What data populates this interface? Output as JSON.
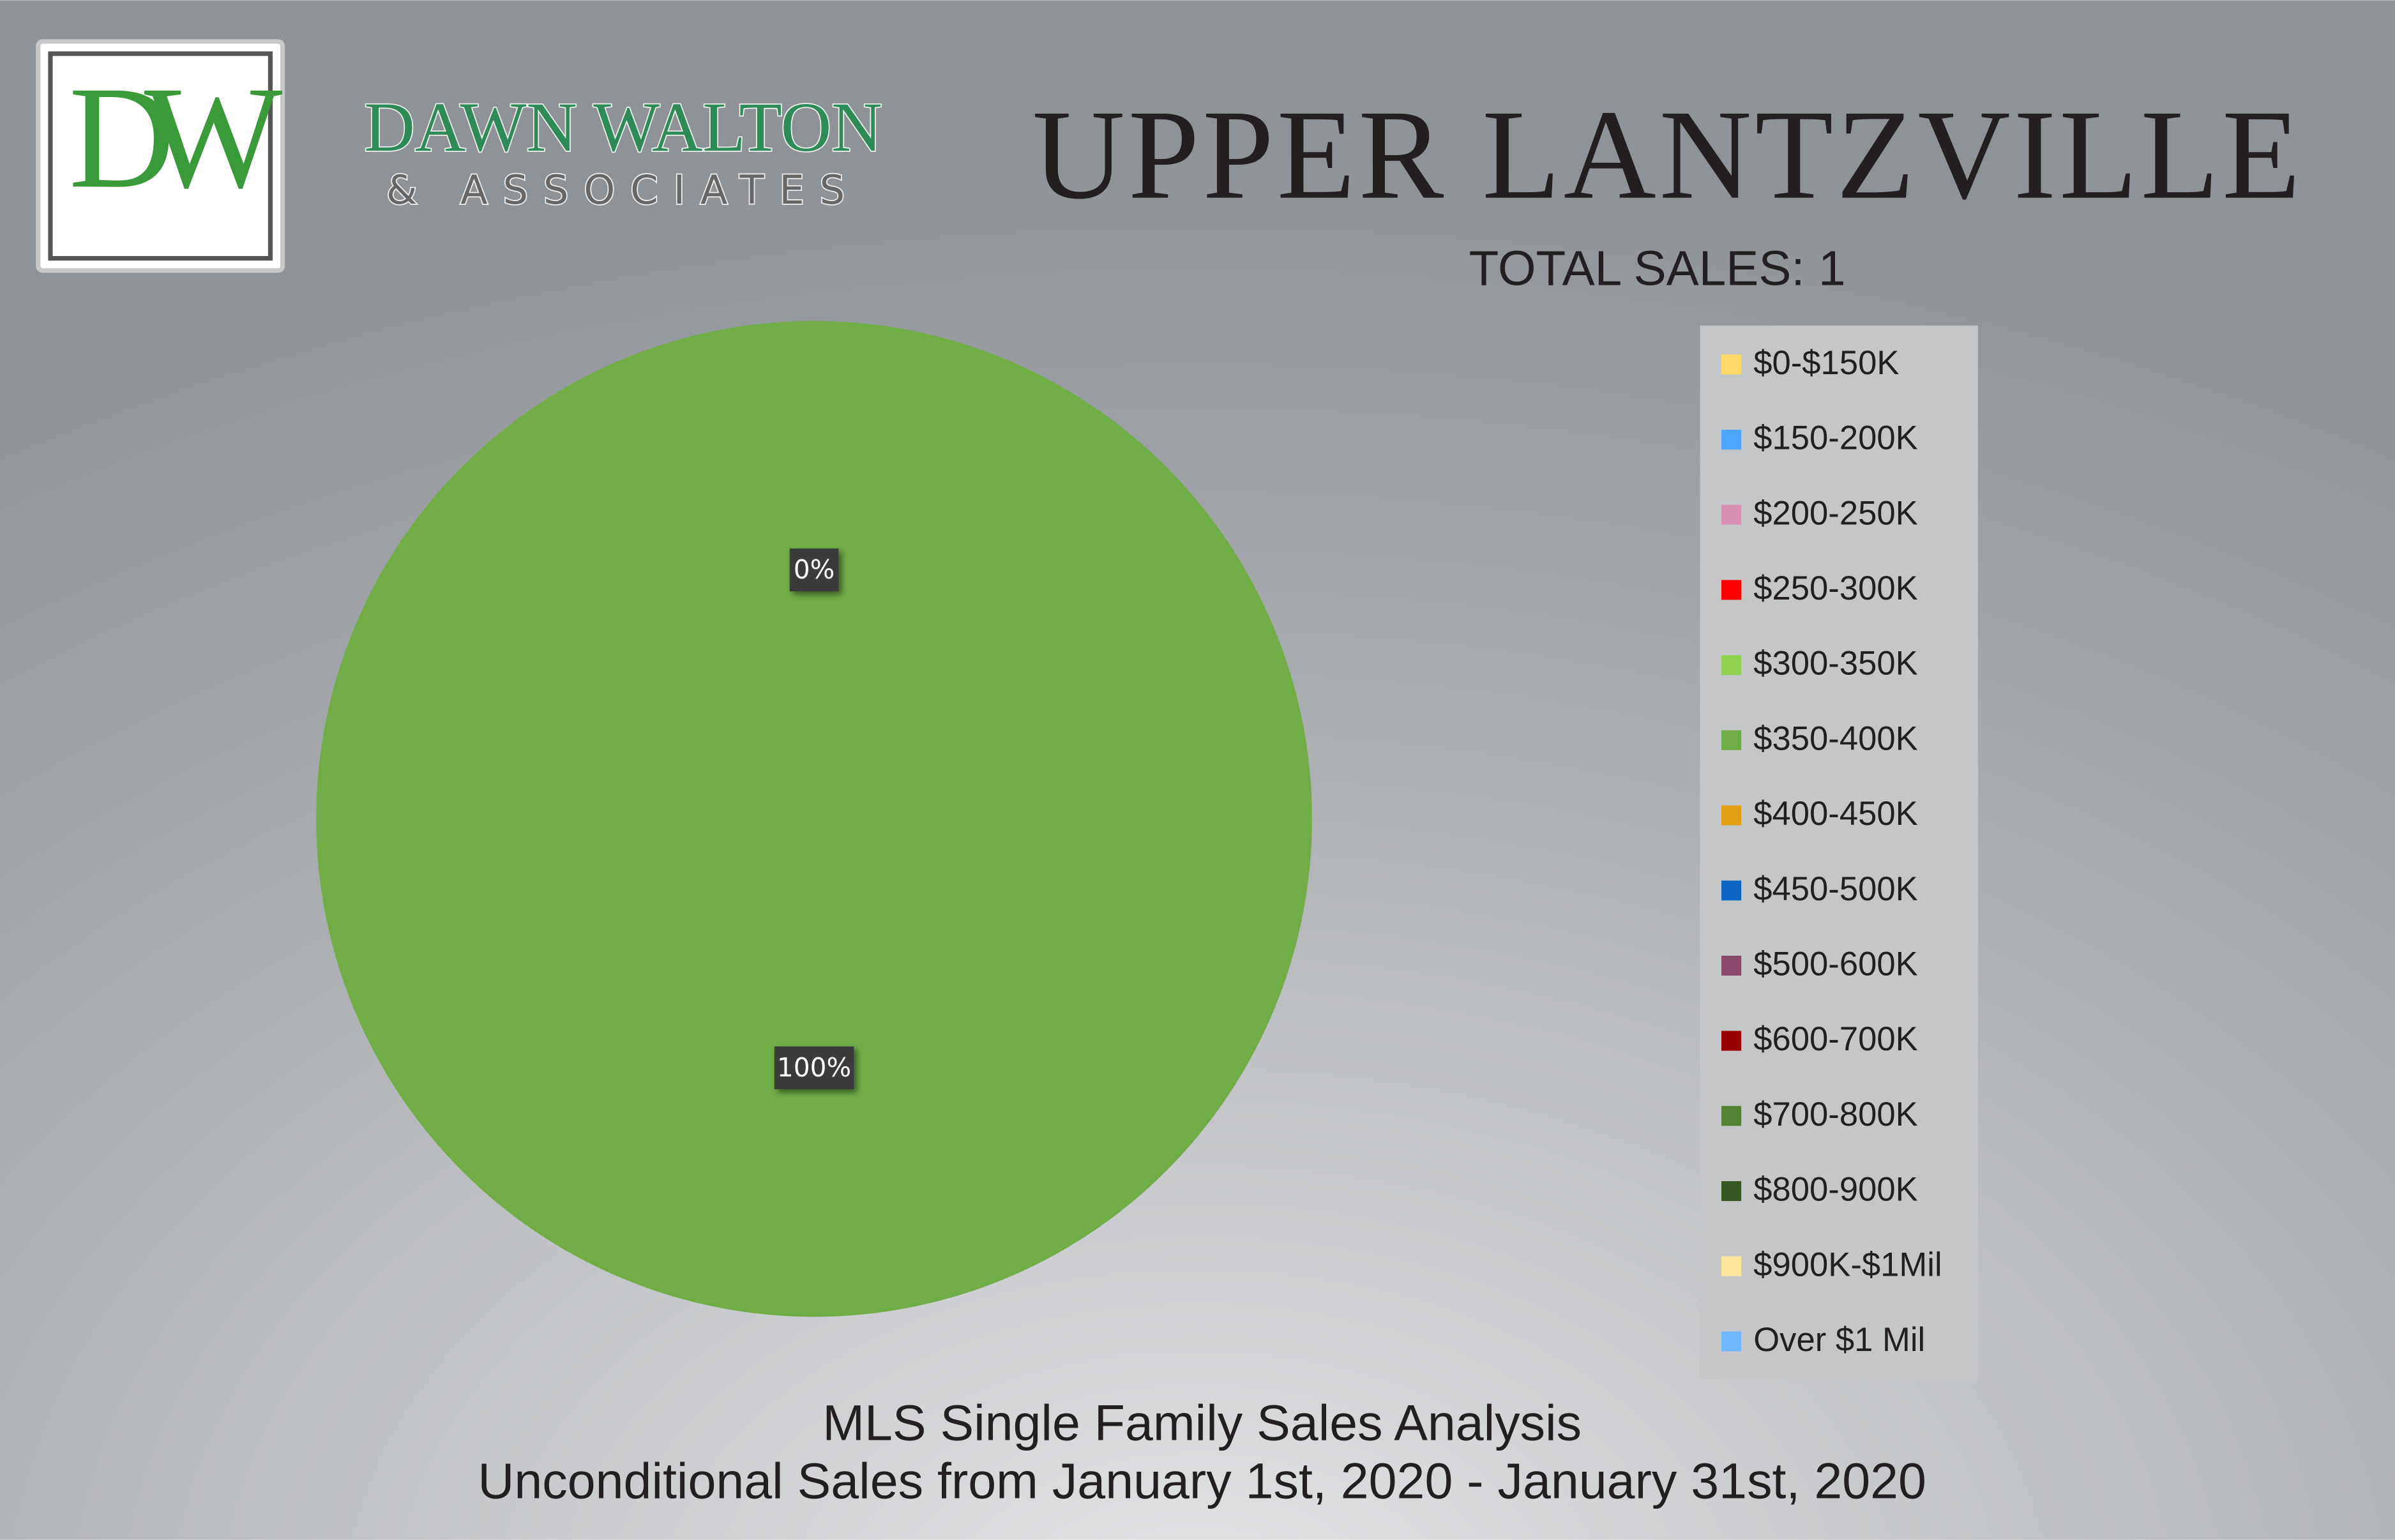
{
  "logo": {
    "monogram": "DW",
    "name": "DAWN WALTON",
    "tagline": "& ASSOCIATES"
  },
  "chart_data": {
    "type": "pie",
    "title": "UPPER LANTZVILLE",
    "subtitle": "TOTAL SALES: 1",
    "footer": [
      "MLS Single Family Sales Analysis",
      "Unconditional Sales from January 1st, 2020 - January 31st, 2020"
    ],
    "categories": [
      "$0-$150K",
      "$150-200K",
      "$200-250K",
      "$250-300K",
      "$300-350K",
      "$350-400K",
      "$400-450K",
      "$450-500K",
      "$500-600K",
      "$600-700K",
      "$700-800K",
      "$800-900K",
      "$900K-$1Mil",
      "Over $1 Mil"
    ],
    "values": [
      null,
      null,
      null,
      null,
      0,
      100,
      null,
      null,
      null,
      null,
      null,
      null,
      null,
      null
    ],
    "value_labels": [
      null,
      null,
      null,
      null,
      "0%",
      "100%",
      null,
      null,
      null,
      null,
      null,
      null,
      null,
      null
    ],
    "colors": [
      "#ffd966",
      "#4da6ff",
      "#d98fb2",
      "#ff0000",
      "#92d050",
      "#70ad47",
      "#e0a010",
      "#0a66c2",
      "#8b4a6b",
      "#990000",
      "#548235",
      "#375623",
      "#ffe699",
      "#6fb7ff"
    ],
    "legend": "right"
  }
}
